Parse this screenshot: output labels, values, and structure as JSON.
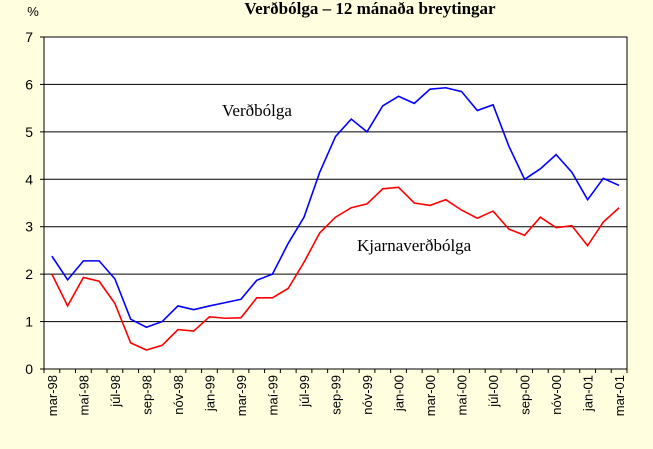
{
  "chart_data": {
    "type": "line",
    "title": "Verðbólga – 12 mánaða breytingar",
    "y_label": "%",
    "annotations": [
      "Verðbólga",
      "Kjarnaverðbólga"
    ],
    "categories": [
      "mar-98",
      null,
      "maí-98",
      null,
      "júl-98",
      null,
      "sep-98",
      null,
      "nóv-98",
      null,
      "jan-99",
      null,
      "mar-99",
      null,
      "maí-99",
      null,
      "júl-99",
      null,
      "sep-99",
      null,
      "nóv-99",
      null,
      "jan-00",
      null,
      "mar-00",
      null,
      "maí-00",
      null,
      "júl-00",
      null,
      "sep-00",
      null,
      "nóv-00",
      null,
      "jan-01",
      null,
      "mar-01"
    ],
    "series": [
      {
        "name": "Verðbólga",
        "color": "#0000ff",
        "values": [
          2.38,
          1.88,
          2.28,
          2.28,
          1.9,
          1.05,
          0.88,
          1.0,
          1.33,
          1.25,
          1.33,
          1.4,
          1.47,
          1.87,
          2.0,
          2.65,
          3.2,
          4.15,
          4.9,
          5.27,
          5.0,
          5.55,
          5.75,
          5.6,
          5.9,
          5.93,
          5.85,
          5.45,
          5.57,
          4.7,
          4.0,
          4.22,
          4.52,
          4.15,
          3.57,
          4.02,
          3.87
        ]
      },
      {
        "name": "Kjarnaverðbólga",
        "color": "#ff0000",
        "values": [
          2.0,
          1.33,
          1.93,
          1.85,
          1.38,
          0.55,
          0.4,
          0.5,
          0.83,
          0.8,
          1.1,
          1.07,
          1.08,
          1.5,
          1.5,
          1.7,
          2.25,
          2.87,
          3.2,
          3.4,
          3.48,
          3.8,
          3.83,
          3.5,
          3.45,
          3.57,
          3.35,
          3.18,
          3.33,
          2.95,
          2.82,
          3.2,
          2.98,
          3.02,
          2.6,
          3.1,
          3.4
        ]
      }
    ],
    "ylim": [
      0,
      7
    ],
    "yticks": [
      0,
      1,
      2,
      3,
      4,
      5,
      6,
      7
    ],
    "grid": true
  }
}
